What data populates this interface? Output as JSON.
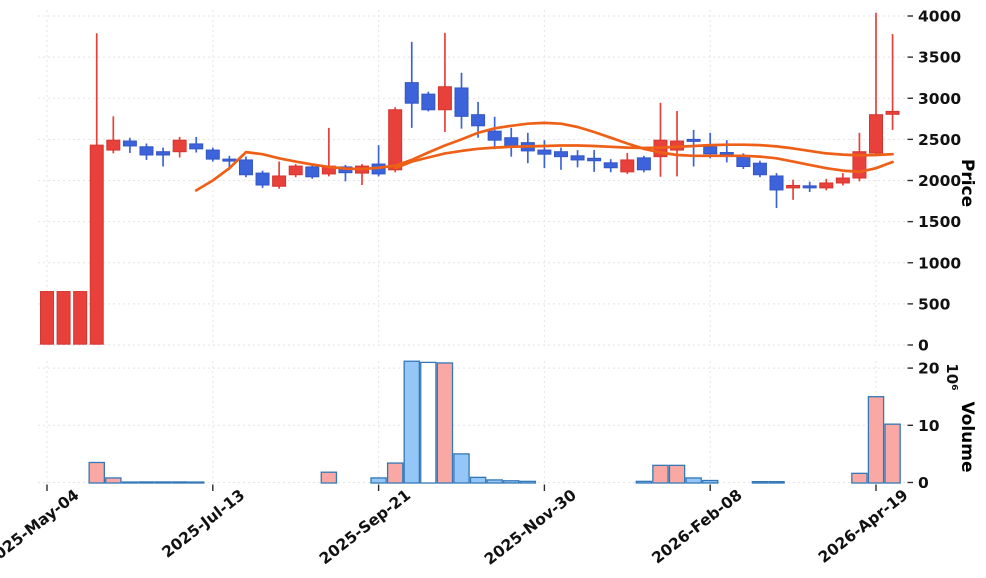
{
  "figure": {
    "price_axis_label": "Price",
    "volume_axis_label": "Volume",
    "volume_offset_text": "10⁶"
  },
  "chart_data": {
    "type": "candlestick",
    "panels": [
      "price",
      "volume"
    ],
    "legend": "none",
    "grid": "dotted",
    "x_ticks": {
      "indices": [
        0,
        10,
        20,
        30,
        40,
        50
      ],
      "labels": [
        "2025-May-04",
        "2025-Jul-13",
        "2025-Sep-21",
        "2025-Nov-30",
        "2026-Feb-08",
        "2026-Apr-19"
      ]
    },
    "price_axis": {
      "ticks": [
        0,
        500,
        1000,
        1500,
        2000,
        2500,
        3000,
        3500,
        4000
      ],
      "range": [
        0,
        4100
      ]
    },
    "volume_axis": {
      "ticks": [
        0,
        10,
        20
      ],
      "unit_millions": true
    },
    "candles_ohlc": [
      [
        650,
        650,
        5,
        10
      ],
      [
        650,
        650,
        5,
        10
      ],
      [
        650,
        650,
        5,
        10
      ],
      [
        2430,
        3790,
        5,
        10
      ],
      [
        2490,
        2780,
        2330,
        2370
      ],
      [
        2420,
        2520,
        2335,
        2480
      ],
      [
        2310,
        2450,
        2250,
        2410
      ],
      [
        2310,
        2400,
        2170,
        2350
      ],
      [
        2490,
        2530,
        2280,
        2350
      ],
      [
        2385,
        2530,
        2340,
        2445
      ],
      [
        2260,
        2400,
        2230,
        2370
      ],
      [
        2240,
        2300,
        2130,
        2260
      ],
      [
        2070,
        2290,
        2040,
        2250
      ],
      [
        1945,
        2120,
        1910,
        2090
      ],
      [
        2055,
        2230,
        1900,
        1930
      ],
      [
        2175,
        2200,
        2040,
        2070
      ],
      [
        2045,
        2190,
        2020,
        2165
      ],
      [
        2175,
        2640,
        2050,
        2080
      ],
      [
        2095,
        2190,
        1990,
        2165
      ],
      [
        2175,
        2200,
        1945,
        2090
      ],
      [
        2080,
        2430,
        2050,
        2200
      ],
      [
        2860,
        2890,
        2100,
        2130
      ],
      [
        2940,
        3685,
        2640,
        3190
      ],
      [
        2860,
        3080,
        2840,
        3050
      ],
      [
        3140,
        3795,
        2590,
        2860
      ],
      [
        2780,
        3310,
        2630,
        3125
      ],
      [
        2665,
        2955,
        2520,
        2800
      ],
      [
        2490,
        2775,
        2380,
        2600
      ],
      [
        2420,
        2640,
        2290,
        2520
      ],
      [
        2360,
        2580,
        2210,
        2460
      ],
      [
        2320,
        2490,
        2150,
        2370
      ],
      [
        2290,
        2400,
        2130,
        2350
      ],
      [
        2250,
        2370,
        2160,
        2300
      ],
      [
        2240,
        2370,
        2105,
        2270
      ],
      [
        2155,
        2260,
        2100,
        2215
      ],
      [
        2250,
        2335,
        2080,
        2105
      ],
      [
        2130,
        2300,
        2100,
        2275
      ],
      [
        2490,
        2945,
        2045,
        2290
      ],
      [
        2480,
        2845,
        2050,
        2370
      ],
      [
        2480,
        2615,
        2170,
        2500
      ],
      [
        2325,
        2580,
        2270,
        2410
      ],
      [
        2320,
        2490,
        2220,
        2340
      ],
      [
        2170,
        2330,
        2140,
        2300
      ],
      [
        2070,
        2240,
        2040,
        2210
      ],
      [
        1885,
        2090,
        1665,
        2055
      ],
      [
        1940,
        2010,
        1765,
        1910
      ],
      [
        1915,
        1985,
        1860,
        1935
      ],
      [
        1970,
        2020,
        1880,
        1910
      ],
      [
        2030,
        2090,
        1940,
        1970
      ],
      [
        2350,
        2580,
        1990,
        2030
      ],
      [
        2800,
        4040,
        2300,
        2335
      ],
      [
        2840,
        3780,
        2615,
        2805
      ]
    ],
    "volumes_millions": [
      0,
      0,
      0,
      3.5,
      0.8,
      0.08,
      0.1,
      0.1,
      0.1,
      0.08,
      0,
      0,
      0,
      0,
      0,
      0,
      0,
      1.8,
      0,
      0,
      0.8,
      3.4,
      21.2,
      21.0,
      20.9,
      5.0,
      0.9,
      0.45,
      0.3,
      0.2,
      0,
      0,
      0,
      0,
      0,
      0,
      0.2,
      3.0,
      3.0,
      0.8,
      0.35,
      0,
      0,
      0.15,
      0.15,
      0,
      0,
      0,
      0,
      1.6,
      15.0,
      10.2
    ],
    "hollow_volume_indices": [
      23
    ],
    "moving_averages": [
      {
        "name": "ma-fast",
        "start_index": 9,
        "values": [
          1880,
          2000,
          2150,
          2345,
          2320,
          2270,
          2230,
          2195,
          2165,
          2145,
          2140,
          2155,
          2180,
          2250,
          2340,
          2425,
          2500,
          2580,
          2635,
          2665,
          2690,
          2700,
          2690,
          2650,
          2590,
          2520,
          2450,
          2385,
          2340,
          2310,
          2300,
          2300,
          2300,
          2300,
          2290,
          2270,
          2230,
          2190,
          2150,
          2120,
          2105,
          2150,
          2225
        ]
      },
      {
        "name": "ma-slow",
        "start_index": 21,
        "values": [
          2150,
          2230,
          2280,
          2330,
          2360,
          2385,
          2400,
          2410,
          2415,
          2420,
          2425,
          2425,
          2420,
          2410,
          2400,
          2395,
          2400,
          2410,
          2420,
          2430,
          2435,
          2435,
          2430,
          2415,
          2390,
          2360,
          2330,
          2315,
          2305,
          2310,
          2320
        ]
      }
    ],
    "colors": {
      "up_candle": "#3d63da",
      "up_candle_edge": "#3356c4",
      "down_candle": "#e8403a",
      "down_candle_edge": "#d53530",
      "ma_line": "#ee6017",
      "volume_up_fill": "#94c6f8",
      "volume_down_fill": "#faa8a3",
      "volume_hollow_fill": "#ffffff",
      "volume_edge": "#3478b7",
      "grid": "#e3e3eb",
      "tick": "#2b2b2b"
    }
  }
}
